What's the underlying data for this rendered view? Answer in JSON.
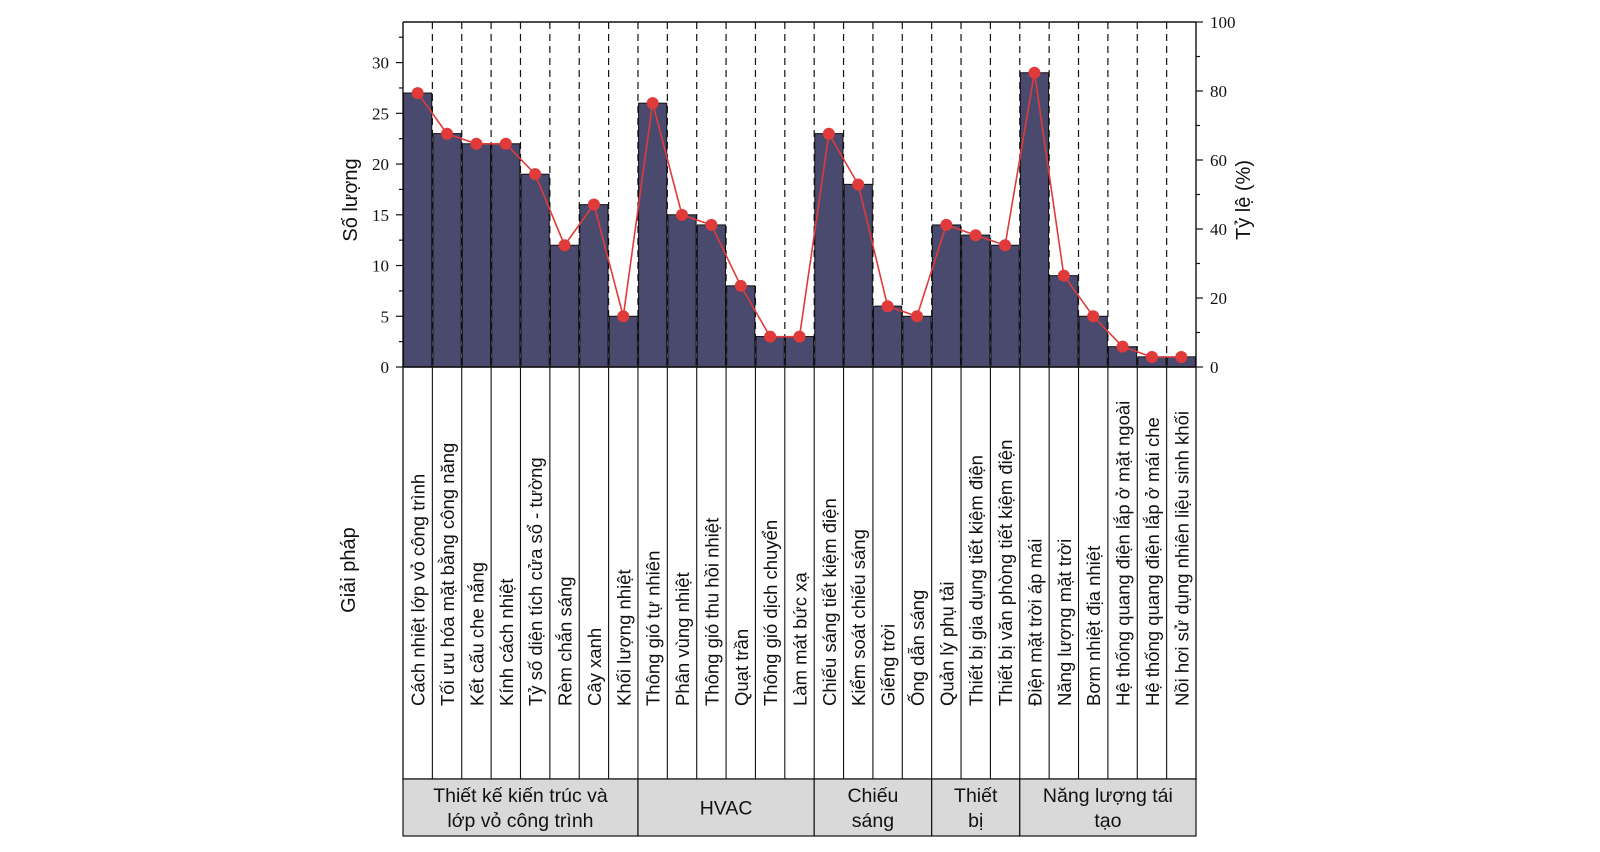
{
  "chart_data": {
    "type": "bar",
    "ylabel": "Số lượng",
    "y2label": "Tỷ lệ (%)",
    "xlabel": "Giải pháp",
    "ylim": [
      0,
      34
    ],
    "y2lim": [
      0,
      100
    ],
    "yticks": [
      0,
      5,
      10,
      15,
      20,
      25,
      30
    ],
    "y2ticks": [
      0,
      20,
      40,
      60,
      80,
      100
    ],
    "categories": [
      "Cách nhiệt lớp vỏ công trình",
      "Tối ưu hóa mặt bằng công năng",
      "Kết cấu che nắng",
      "Kính cách nhiệt",
      "Tỷ số diện tích cửa sổ - tường",
      "Rèm chắn sáng",
      "Cây xanh",
      "Khối lượng nhiệt",
      "Thông gió tự nhiên",
      "Phân vùng nhiệt",
      "Thông gió thu hồi nhiệt",
      "Quạt trần",
      "Thông gió dịch chuyển",
      "Làm mát bức xạ",
      "Chiếu sáng tiết kiệm điện",
      "Kiểm soát chiếu sáng",
      "Giếng trời",
      "Ống dẫn sáng",
      "Quản lý phụ tải",
      "Thiết bị gia dụng tiết kiệm điện",
      "Thiết bị văn phòng tiết kiệm điện",
      "Điện mặt trời áp mái",
      "Năng lượng mặt trời",
      "Bơm nhiệt địa nhiệt",
      "Hệ thống quang điện lắp ở mặt ngoài",
      "Hệ thống quang điện lắp ở mái che",
      "Nồi hơi sử dụng nhiên liệu sinh khối"
    ],
    "series": [
      {
        "name": "Số lượng",
        "type": "bar",
        "axis": "left",
        "values": [
          27,
          23,
          22,
          22,
          19,
          12,
          16,
          5,
          26,
          15,
          14,
          8,
          3,
          3,
          23,
          18,
          6,
          5,
          14,
          13,
          12,
          29,
          9,
          5,
          2,
          1,
          1
        ]
      },
      {
        "name": "Tỷ lệ (%)",
        "type": "line",
        "axis": "right",
        "values": [
          79.4,
          67.6,
          64.7,
          64.7,
          55.9,
          35.3,
          47.1,
          14.7,
          76.5,
          44.1,
          41.2,
          23.5,
          8.8,
          8.8,
          67.6,
          52.9,
          17.6,
          14.7,
          41.2,
          38.2,
          35.3,
          85.3,
          26.5,
          14.7,
          5.9,
          2.9,
          2.9
        ]
      }
    ],
    "groups": [
      {
        "label_lines": [
          "Thiết kế kiến trúc và",
          "lớp vỏ công trình"
        ],
        "count": 8
      },
      {
        "label_lines": [
          "HVAC"
        ],
        "count": 6
      },
      {
        "label_lines": [
          "Chiếu",
          "sáng"
        ],
        "count": 4
      },
      {
        "label_lines": [
          "Thiết",
          "bị"
        ],
        "count": 3
      },
      {
        "label_lines": [
          "Năng lượng tái",
          "tạo"
        ],
        "count": 6
      }
    ],
    "colors": {
      "bar": "#4a4a6e",
      "line": "#e03a3a",
      "group_box": "#d9d9d9"
    },
    "grid": false,
    "legend": "none"
  }
}
